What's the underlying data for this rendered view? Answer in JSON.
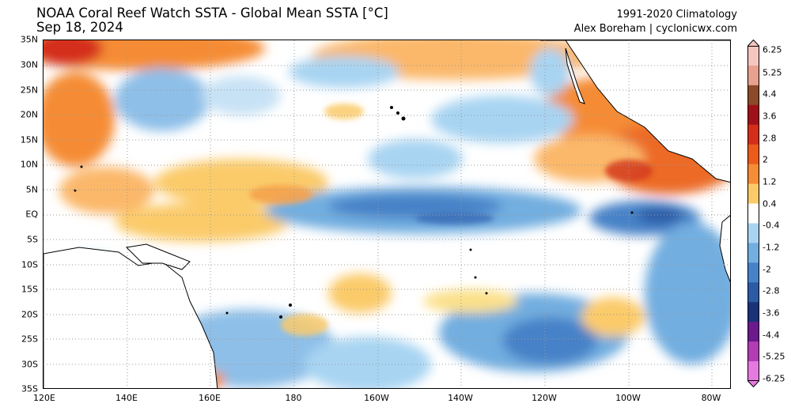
{
  "header": {
    "title_line1": "NOAA Coral Reef Watch SSTA - Global Mean SSTA [°C]",
    "title_line2": "Sep 18, 2024",
    "climatology": "1991-2020 Climatology",
    "credit": "Alex Boreham | cyclonicwx.com"
  },
  "map": {
    "lat_labels": [
      "35N",
      "30N",
      "25N",
      "20N",
      "15N",
      "10N",
      "5N",
      "EQ",
      "5S",
      "10S",
      "15S",
      "20S",
      "25S",
      "30S",
      "35S"
    ],
    "lon_labels": [
      "120E",
      "140E",
      "160E",
      "180",
      "160W",
      "140W",
      "120W",
      "100W",
      "80W"
    ],
    "colors": {
      "ocean_neutral": "#ffffff",
      "land": "#ffffff",
      "coast": "#000000"
    }
  },
  "colorbar": {
    "labels": [
      "6.25",
      "5.25",
      "4.4",
      "3.6",
      "2.8",
      "2",
      "1.2",
      "0.4",
      "-0.4",
      "-1.2",
      "-2",
      "-2.8",
      "-3.6",
      "-4.4",
      "-5.25",
      "-6.25"
    ],
    "colors": [
      "#f5c6c0",
      "#e8a08f",
      "#8c4a2a",
      "#a0101a",
      "#d42e1a",
      "#ec5a1c",
      "#f58c36",
      "#fbcb6a",
      "#ffffff",
      "#a8d4f2",
      "#72aee0",
      "#4682c8",
      "#2c5aa4",
      "#1a3278",
      "#6a1a8c",
      "#b23cb4",
      "#e47ae0"
    ]
  }
}
